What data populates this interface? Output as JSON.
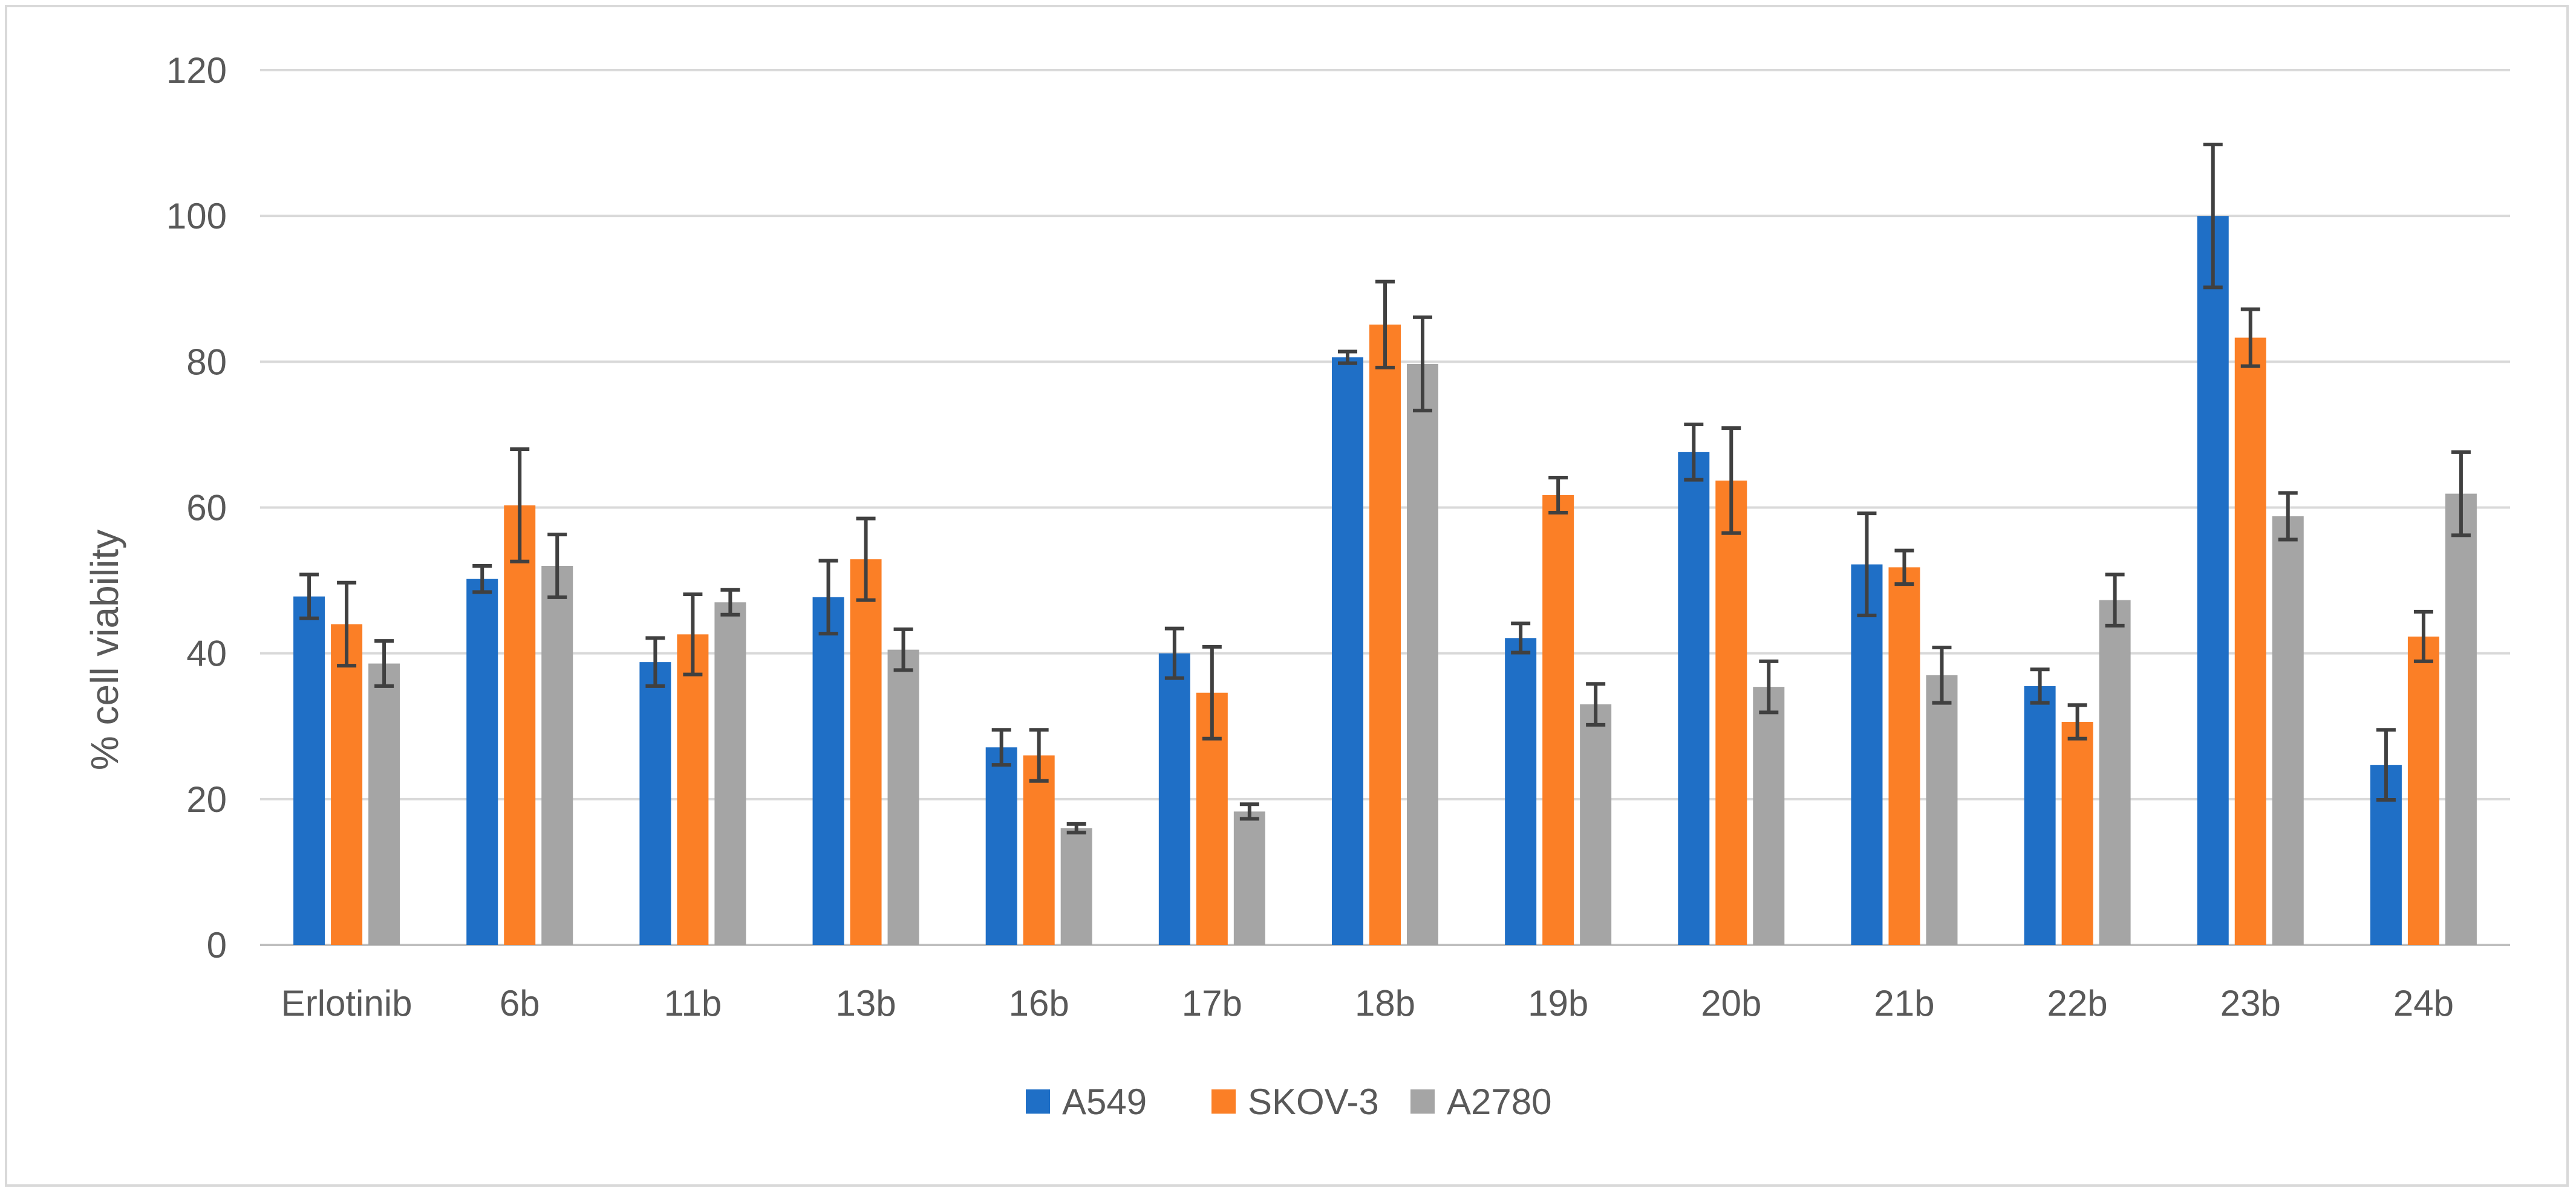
{
  "chart_data": {
    "type": "bar",
    "title": "",
    "xlabel": "",
    "ylabel": "% cell viability",
    "ylim": [
      0,
      120
    ],
    "yticks": [
      0,
      20,
      40,
      60,
      80,
      100,
      120
    ],
    "grid": true,
    "legend_position": "bottom",
    "categories": [
      "Erlotinib",
      "6b",
      "11b",
      "13b",
      "16b",
      "17b",
      "18b",
      "19b",
      "20b",
      "21b",
      "22b",
      "23b",
      "24b"
    ],
    "series": [
      {
        "name": "A549",
        "color": "#1f6fc6",
        "values": [
          47.8,
          50.2,
          38.8,
          47.7,
          27.1,
          40.0,
          80.6,
          42.1,
          67.6,
          52.2,
          35.5,
          100.0,
          24.7
        ],
        "errors": [
          3.0,
          1.8,
          3.3,
          5.0,
          2.4,
          3.4,
          0.8,
          2.0,
          3.8,
          7.0,
          2.3,
          9.8,
          4.8
        ]
      },
      {
        "name": "SKOV-3",
        "color": "#fb7f26",
        "values": [
          44.0,
          60.3,
          42.6,
          52.9,
          26.0,
          34.6,
          85.1,
          61.7,
          63.7,
          51.8,
          30.6,
          83.3,
          42.3
        ],
        "errors": [
          5.7,
          7.7,
          5.5,
          5.6,
          3.5,
          6.3,
          5.9,
          2.4,
          7.2,
          2.3,
          2.3,
          3.9,
          3.4
        ]
      },
      {
        "name": "A2780",
        "color": "#a5a5a5",
        "values": [
          38.6,
          52.0,
          47.0,
          40.5,
          16.0,
          18.3,
          79.7,
          33.0,
          35.4,
          37.0,
          47.3,
          58.8,
          61.9
        ],
        "errors": [
          3.1,
          4.3,
          1.7,
          2.8,
          0.6,
          1.0,
          6.4,
          2.8,
          3.5,
          3.8,
          3.5,
          3.2,
          5.7
        ]
      }
    ]
  }
}
